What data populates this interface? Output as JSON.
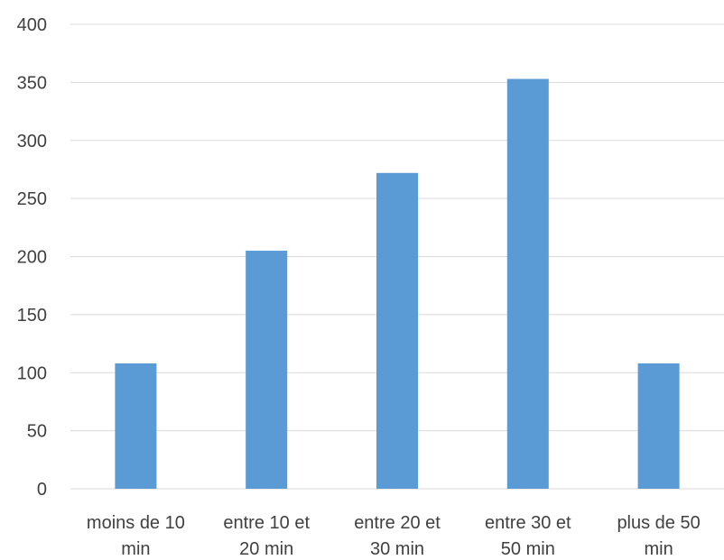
{
  "chart_data": {
    "type": "bar",
    "categories": [
      [
        "moins de 10",
        "min"
      ],
      [
        "entre 10 et",
        "20 min"
      ],
      [
        "entre 20 et",
        "30 min"
      ],
      [
        "entre 30 et",
        "50 min"
      ],
      [
        "plus de 50",
        "min"
      ]
    ],
    "values": [
      108,
      205,
      272,
      353,
      108
    ],
    "ylim": [
      0,
      400
    ],
    "yticks": [
      "0",
      "50",
      "100",
      "150",
      "200",
      "250",
      "300",
      "350",
      "400"
    ],
    "grid": true,
    "legend": "none",
    "title": "",
    "xlabel": "",
    "ylabel": "",
    "colors": {
      "bar": "#5b9bd5",
      "grid": "#d9d9d9",
      "text": "#404040"
    }
  }
}
